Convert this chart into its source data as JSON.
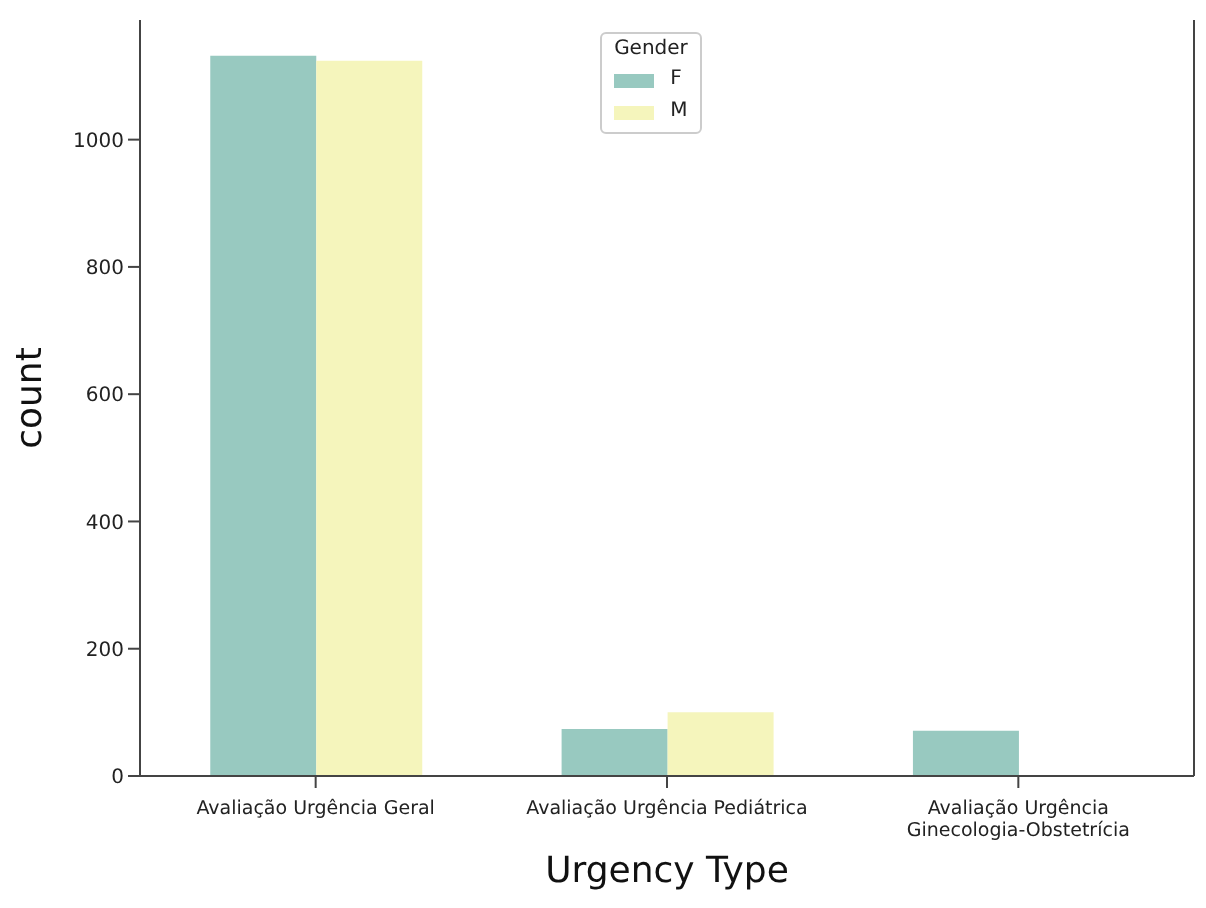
{
  "chart_data": {
    "type": "bar",
    "xlabel": "Urgency Type",
    "ylabel": "count",
    "legend_title": "Gender",
    "categories": [
      "Avaliação Urgência Geral",
      "Avaliação Urgência Pediátrica",
      "Avaliação Urgência Ginecologia-Obstetrícia"
    ],
    "series": [
      {
        "name": "F",
        "color": "#98c9c0",
        "values": [
          1132,
          74,
          71
        ]
      },
      {
        "name": "M",
        "color": "#f5f5bc",
        "values": [
          1124,
          100,
          0
        ]
      }
    ],
    "ylim": [
      0,
      1188
    ],
    "yticks": [
      0,
      200,
      400,
      600,
      800,
      1000
    ],
    "grid": false,
    "legend": "top"
  }
}
